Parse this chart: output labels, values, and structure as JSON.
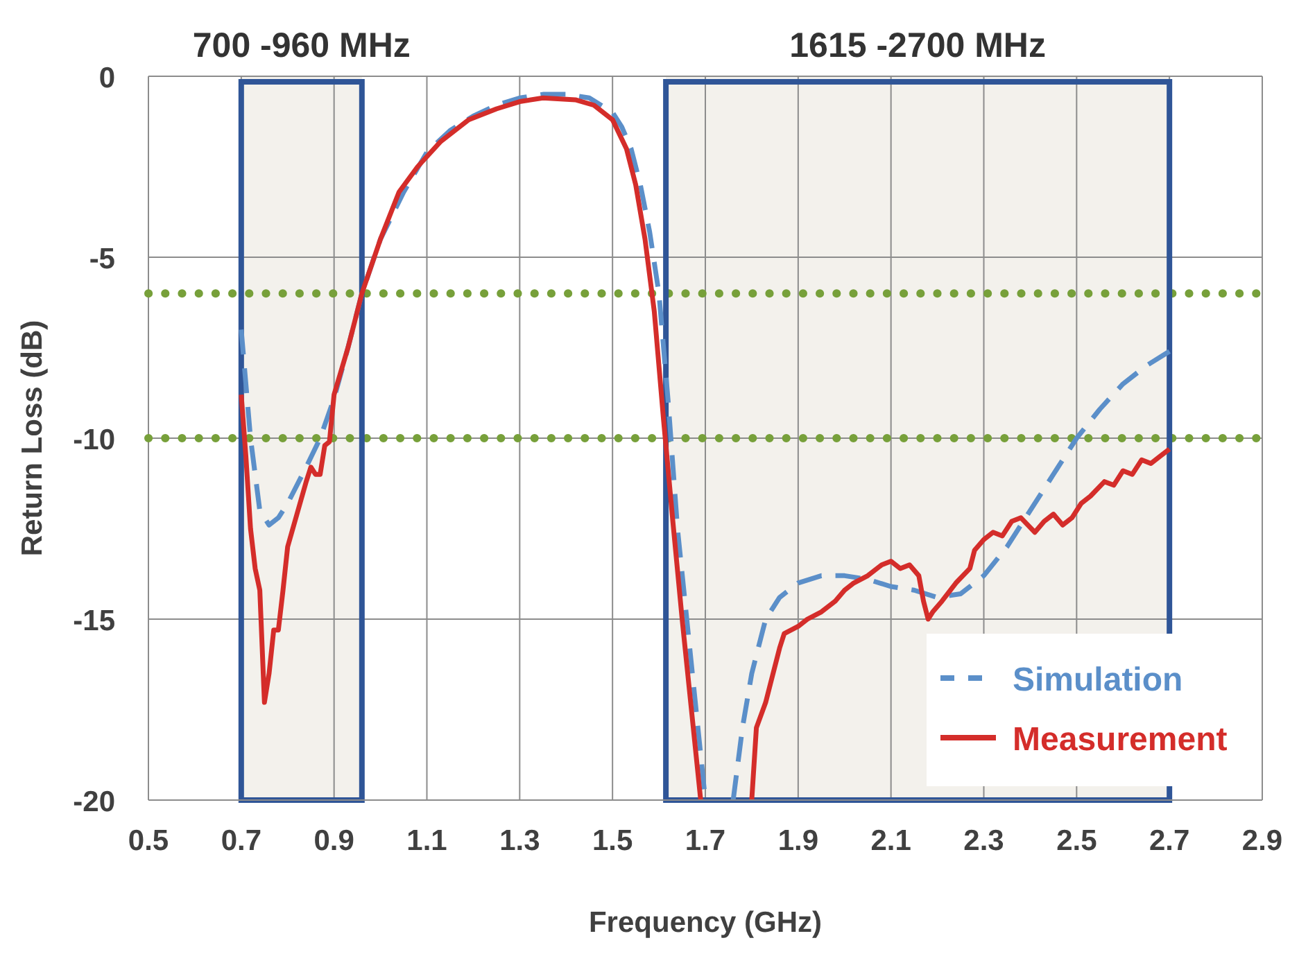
{
  "chart_data": {
    "type": "line",
    "xlabel": "Frequency (GHz)",
    "ylabel": "Return Loss (dB)",
    "xlim": [
      0.5,
      2.9
    ],
    "xticks": [
      0.5,
      0.7,
      0.9,
      1.1,
      1.3,
      1.5,
      1.7,
      1.9,
      2.1,
      2.3,
      2.5,
      2.7,
      2.9
    ],
    "ylim": [
      -20,
      0
    ],
    "yticks": [
      0,
      -5,
      -10,
      -15,
      -20
    ],
    "grid": true,
    "legend": "bottom right",
    "series": [
      {
        "name": "Simulation",
        "color": "#5b8fc9",
        "line_style": "dashed",
        "x": [
          0.7,
          0.72,
          0.74,
          0.76,
          0.78,
          0.8,
          0.84,
          0.87,
          0.9,
          0.93,
          0.96,
          1.0,
          1.05,
          1.1,
          1.15,
          1.2,
          1.25,
          1.3,
          1.35,
          1.4,
          1.45,
          1.5,
          1.52,
          1.54,
          1.56,
          1.58,
          1.6,
          1.62,
          1.64,
          1.66,
          1.68,
          1.7,
          1.73,
          1.76,
          1.78,
          1.8,
          1.83,
          1.86,
          1.9,
          1.95,
          2.0,
          2.05,
          2.1,
          2.15,
          2.2,
          2.25,
          2.3,
          2.35,
          2.4,
          2.45,
          2.5,
          2.55,
          2.6,
          2.65,
          2.7
        ],
        "values": [
          -7,
          -10,
          -12,
          -12.4,
          -12.2,
          -11.8,
          -10.8,
          -10,
          -8.9,
          -7.5,
          -6,
          -4.5,
          -3.2,
          -2.1,
          -1.5,
          -1.1,
          -0.8,
          -0.6,
          -0.5,
          -0.5,
          -0.6,
          -1,
          -1.4,
          -2,
          -3,
          -4.3,
          -6,
          -9,
          -12.5,
          -15,
          -17.5,
          -20,
          null,
          -20,
          -18,
          -16.5,
          -15,
          -14.4,
          -14,
          -13.8,
          -13.8,
          -13.9,
          -14.1,
          -14.2,
          -14.4,
          -14.3,
          -13.8,
          -13,
          -12,
          -11,
          -10,
          -9.2,
          -8.5,
          -8,
          -7.6
        ]
      },
      {
        "name": "Measurement",
        "color": "#d42d2a",
        "line_style": "solid",
        "x": [
          0.7,
          0.71,
          0.72,
          0.73,
          0.74,
          0.75,
          0.76,
          0.77,
          0.78,
          0.79,
          0.8,
          0.82,
          0.84,
          0.85,
          0.86,
          0.87,
          0.88,
          0.89,
          0.9,
          0.93,
          0.96,
          1.0,
          1.04,
          1.08,
          1.13,
          1.19,
          1.25,
          1.3,
          1.35,
          1.42,
          1.46,
          1.5,
          1.53,
          1.55,
          1.57,
          1.59,
          1.61,
          1.63,
          1.65,
          1.67,
          1.69,
          null,
          1.8,
          1.81,
          1.83,
          1.84,
          1.86,
          1.87,
          1.9,
          1.92,
          1.95,
          1.98,
          2.0,
          2.02,
          2.05,
          2.08,
          2.1,
          2.12,
          2.14,
          2.16,
          2.17,
          2.18,
          2.19,
          2.21,
          2.24,
          2.27,
          2.28,
          2.3,
          2.32,
          2.34,
          2.36,
          2.38,
          2.41,
          2.43,
          2.45,
          2.47,
          2.49,
          2.51,
          2.53,
          2.56,
          2.58,
          2.6,
          2.62,
          2.64,
          2.66,
          2.68,
          2.7
        ],
        "values": [
          -8.8,
          -10.5,
          -12.5,
          -13.6,
          -14.2,
          -17.3,
          -16.5,
          -15.3,
          -15.3,
          -14.2,
          -13,
          -12.1,
          -11.2,
          -10.8,
          -11,
          -11,
          -10.2,
          -10.1,
          -8.8,
          -7.5,
          -6,
          -4.5,
          -3.2,
          -2.5,
          -1.8,
          -1.2,
          -0.9,
          -0.7,
          -0.6,
          -0.65,
          -0.8,
          -1.2,
          -2,
          -3,
          -4.5,
          -6.5,
          -9.5,
          -12.3,
          -15,
          -17.5,
          -20,
          null,
          -20,
          -18,
          -17.3,
          -16.8,
          -15.8,
          -15.4,
          -15.2,
          -15,
          -14.8,
          -14.5,
          -14.2,
          -14,
          -13.8,
          -13.5,
          -13.4,
          -13.6,
          -13.5,
          -13.8,
          -14.5,
          -15,
          -14.8,
          -14.5,
          -14,
          -13.6,
          -13.1,
          -12.8,
          -12.6,
          -12.7,
          -12.3,
          -12.2,
          -12.6,
          -12.3,
          -12.1,
          -12.4,
          -12.2,
          -11.8,
          -11.6,
          -11.2,
          -11.3,
          -10.9,
          -11,
          -10.6,
          -10.7,
          -10.5,
          -10.3
        ]
      }
    ],
    "ref_lines": [
      {
        "axis": "y",
        "value": -6,
        "color": "#77a03a",
        "line_style": "dotted"
      },
      {
        "axis": "y",
        "value": -10,
        "color": "#77a03a",
        "line_style": "dotted"
      }
    ],
    "bands": [
      {
        "axis": "x",
        "from": 0.7,
        "to": 0.96,
        "label": "700 -960 MHz",
        "color": "#f3f1ec"
      },
      {
        "axis": "x",
        "from": 1.615,
        "to": 2.7,
        "label": "1615 -2700 MHz",
        "color": "#f3f1ec"
      }
    ]
  }
}
